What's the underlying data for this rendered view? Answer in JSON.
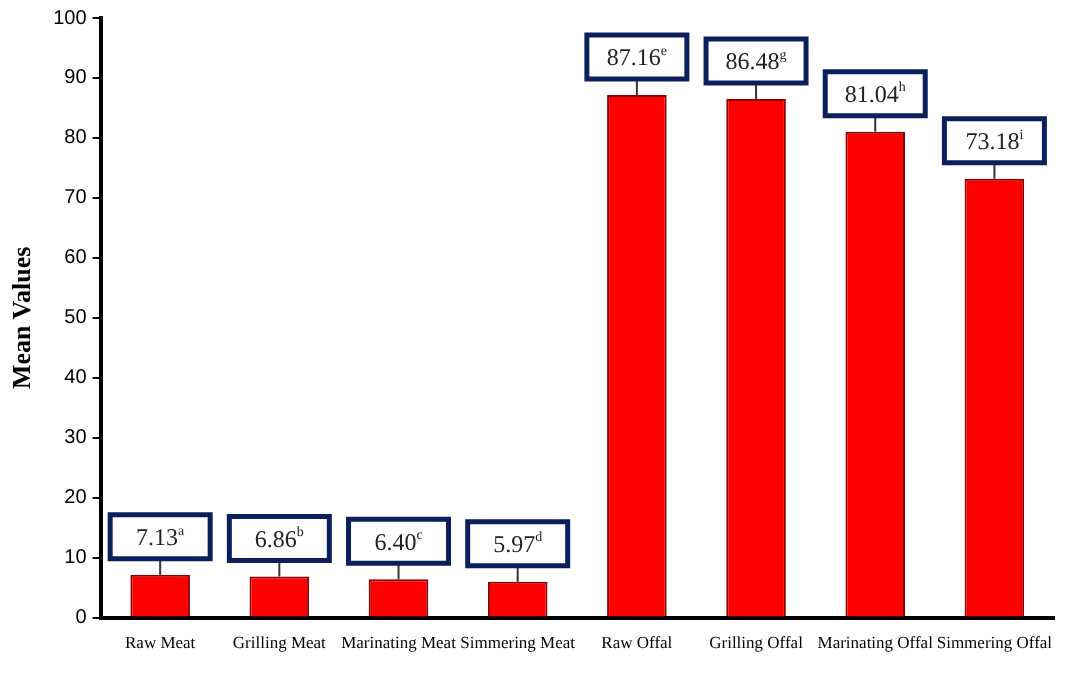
{
  "chart_data": {
    "type": "bar",
    "ylabel": "Mean Values",
    "categories": [
      "Raw Meat",
      "Grilling Meat",
      "Marinating Meat",
      "Simmering Meat",
      "Raw Offal",
      "Grilling Offal",
      "Marinating Offal",
      "Simmering Offal"
    ],
    "values": [
      7.13,
      6.86,
      6.4,
      5.97,
      87.16,
      86.48,
      81.04,
      73.18
    ],
    "value_labels": [
      "7.13$^{a}$",
      "6.86$^{b}$",
      "6.40$^{c}$",
      "5.97$^{d}$",
      "87.16$^{e}$",
      "86.48$^{g}$",
      "81.04$^{h}$",
      "73.18$^{i}$"
    ],
    "color": "#ff0000",
    "ylim": [
      0,
      100
    ],
    "yticks": [
      0,
      10,
      20,
      30,
      40,
      50,
      60,
      70,
      80,
      90,
      100
    ],
    "grid": false,
    "legend": false
  }
}
